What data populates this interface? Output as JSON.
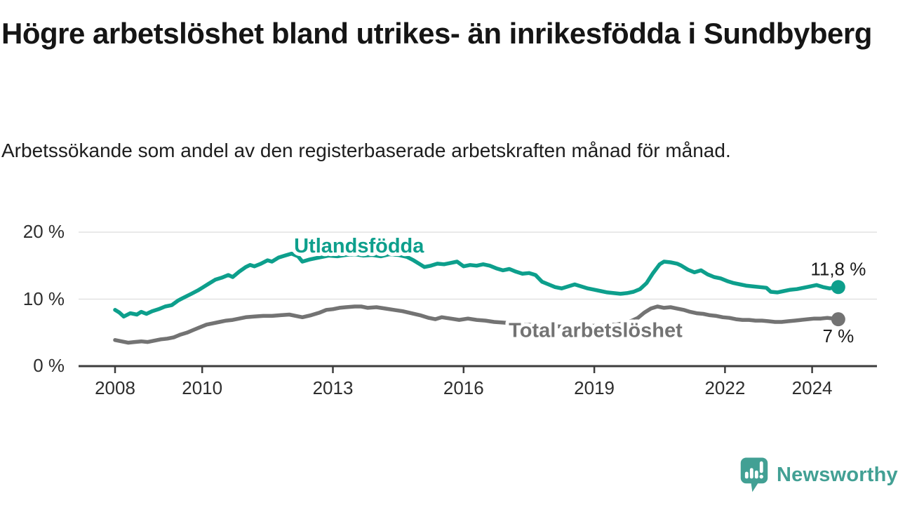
{
  "page": {
    "title": "Högre arbetslöshet bland utrikes- än inrikesfödda i Sundbyberg",
    "subtitle": "Arbetssökande som andel av den registerbaserade arbetskraften månad för månad."
  },
  "branding": {
    "name": "Newsworthy",
    "color": "#42a094",
    "icon": "bar-chart-speech-bubble"
  },
  "chart_data": {
    "type": "line",
    "title": "Högre arbetslöshet bland utrikes- än inrikesfödda i Sundbyberg",
    "subtitle": "Arbetssökande som andel av den registerbaserade arbetskraften månad för månad.",
    "grid": "horizontal-only",
    "legend_position": "inline-labels",
    "xlim": [
      2007.2,
      2025.4
    ],
    "ylim": [
      0,
      21
    ],
    "x_ticks": [
      {
        "year": 2008,
        "label": "2008"
      },
      {
        "year": 2010,
        "label": "2010"
      },
      {
        "year": 2013,
        "label": "2013"
      },
      {
        "year": 2016,
        "label": "2016"
      },
      {
        "year": 2019,
        "label": "2019"
      },
      {
        "year": 2022,
        "label": "2022"
      },
      {
        "year": 2024,
        "label": "2024"
      }
    ],
    "y_ticks": [
      {
        "value": 0,
        "label": "0 %"
      },
      {
        "value": 10,
        "label": "10 %"
      },
      {
        "value": 20,
        "label": "20 %"
      }
    ],
    "series": [
      {
        "name": "Utlandsfödda",
        "color": "#0d9f8c",
        "end_label": "11,8 %",
        "end_label_side": "above",
        "label_anchor": {
          "year": 2013.6,
          "value": 17.9
        },
        "points": [
          [
            2008.0,
            8.4
          ],
          [
            2008.1,
            8.0
          ],
          [
            2008.2,
            7.4
          ],
          [
            2008.35,
            7.9
          ],
          [
            2008.5,
            7.7
          ],
          [
            2008.6,
            8.1
          ],
          [
            2008.72,
            7.8
          ],
          [
            2008.85,
            8.2
          ],
          [
            2009.0,
            8.5
          ],
          [
            2009.15,
            8.9
          ],
          [
            2009.3,
            9.1
          ],
          [
            2009.45,
            9.8
          ],
          [
            2009.6,
            10.3
          ],
          [
            2009.75,
            10.8
          ],
          [
            2009.9,
            11.3
          ],
          [
            2010.0,
            11.7
          ],
          [
            2010.15,
            12.3
          ],
          [
            2010.3,
            12.9
          ],
          [
            2010.45,
            13.2
          ],
          [
            2010.6,
            13.6
          ],
          [
            2010.7,
            13.3
          ],
          [
            2010.85,
            14.1
          ],
          [
            2011.0,
            14.8
          ],
          [
            2011.1,
            15.1
          ],
          [
            2011.2,
            14.9
          ],
          [
            2011.35,
            15.3
          ],
          [
            2011.5,
            15.8
          ],
          [
            2011.6,
            15.6
          ],
          [
            2011.75,
            16.2
          ],
          [
            2011.9,
            16.5
          ],
          [
            2012.05,
            16.8
          ],
          [
            2012.2,
            16.4
          ],
          [
            2012.3,
            15.6
          ],
          [
            2012.45,
            15.9
          ],
          [
            2012.6,
            16.1
          ],
          [
            2012.75,
            16.3
          ],
          [
            2012.9,
            16.5
          ],
          [
            2013.1,
            16.4
          ],
          [
            2013.3,
            16.6
          ],
          [
            2013.5,
            16.7
          ],
          [
            2013.7,
            16.5
          ],
          [
            2013.9,
            16.6
          ],
          [
            2014.1,
            16.4
          ],
          [
            2014.3,
            16.7
          ],
          [
            2014.5,
            16.6
          ],
          [
            2014.7,
            16.3
          ],
          [
            2014.85,
            15.8
          ],
          [
            2015.0,
            15.2
          ],
          [
            2015.1,
            14.8
          ],
          [
            2015.25,
            15.0
          ],
          [
            2015.4,
            15.3
          ],
          [
            2015.55,
            15.2
          ],
          [
            2015.7,
            15.4
          ],
          [
            2015.85,
            15.6
          ],
          [
            2016.0,
            14.9
          ],
          [
            2016.15,
            15.1
          ],
          [
            2016.3,
            15.0
          ],
          [
            2016.45,
            15.2
          ],
          [
            2016.6,
            15.0
          ],
          [
            2016.75,
            14.6
          ],
          [
            2016.9,
            14.3
          ],
          [
            2017.05,
            14.5
          ],
          [
            2017.2,
            14.1
          ],
          [
            2017.35,
            13.8
          ],
          [
            2017.5,
            13.9
          ],
          [
            2017.65,
            13.6
          ],
          [
            2017.8,
            12.6
          ],
          [
            2017.95,
            12.2
          ],
          [
            2018.1,
            11.8
          ],
          [
            2018.25,
            11.6
          ],
          [
            2018.4,
            11.9
          ],
          [
            2018.55,
            12.2
          ],
          [
            2018.7,
            11.9
          ],
          [
            2018.85,
            11.6
          ],
          [
            2019.0,
            11.4
          ],
          [
            2019.15,
            11.2
          ],
          [
            2019.3,
            11.0
          ],
          [
            2019.45,
            10.9
          ],
          [
            2019.6,
            10.8
          ],
          [
            2019.75,
            10.9
          ],
          [
            2019.9,
            11.1
          ],
          [
            2020.05,
            11.5
          ],
          [
            2020.2,
            12.4
          ],
          [
            2020.35,
            13.9
          ],
          [
            2020.5,
            15.2
          ],
          [
            2020.6,
            15.6
          ],
          [
            2020.75,
            15.5
          ],
          [
            2020.9,
            15.3
          ],
          [
            2021.0,
            15.0
          ],
          [
            2021.15,
            14.4
          ],
          [
            2021.3,
            14.0
          ],
          [
            2021.45,
            14.3
          ],
          [
            2021.6,
            13.7
          ],
          [
            2021.75,
            13.3
          ],
          [
            2021.9,
            13.1
          ],
          [
            2022.05,
            12.7
          ],
          [
            2022.2,
            12.4
          ],
          [
            2022.35,
            12.2
          ],
          [
            2022.5,
            12.0
          ],
          [
            2022.65,
            11.9
          ],
          [
            2022.8,
            11.8
          ],
          [
            2022.95,
            11.7
          ],
          [
            2023.05,
            11.1
          ],
          [
            2023.2,
            11.0
          ],
          [
            2023.35,
            11.2
          ],
          [
            2023.5,
            11.4
          ],
          [
            2023.65,
            11.5
          ],
          [
            2023.8,
            11.7
          ],
          [
            2023.95,
            11.9
          ],
          [
            2024.1,
            12.1
          ],
          [
            2024.25,
            11.8
          ],
          [
            2024.4,
            11.6
          ],
          [
            2024.6,
            11.8
          ]
        ]
      },
      {
        "name": "Total arbetslöshet",
        "color": "#737373",
        "end_label": "7 %",
        "end_label_side": "below",
        "label_anchor": {
          "year": 2019.03,
          "value": 5.3
        },
        "points": [
          [
            2008.0,
            3.9
          ],
          [
            2008.15,
            3.7
          ],
          [
            2008.3,
            3.5
          ],
          [
            2008.45,
            3.6
          ],
          [
            2008.6,
            3.7
          ],
          [
            2008.75,
            3.6
          ],
          [
            2008.9,
            3.8
          ],
          [
            2009.05,
            4.0
          ],
          [
            2009.2,
            4.1
          ],
          [
            2009.35,
            4.3
          ],
          [
            2009.5,
            4.7
          ],
          [
            2009.65,
            5.0
          ],
          [
            2009.8,
            5.4
          ],
          [
            2009.95,
            5.8
          ],
          [
            2010.1,
            6.2
          ],
          [
            2010.25,
            6.4
          ],
          [
            2010.4,
            6.6
          ],
          [
            2010.55,
            6.8
          ],
          [
            2010.7,
            6.9
          ],
          [
            2010.85,
            7.1
          ],
          [
            2011.0,
            7.3
          ],
          [
            2011.2,
            7.4
          ],
          [
            2011.4,
            7.5
          ],
          [
            2011.6,
            7.5
          ],
          [
            2011.8,
            7.6
          ],
          [
            2012.0,
            7.7
          ],
          [
            2012.15,
            7.5
          ],
          [
            2012.3,
            7.3
          ],
          [
            2012.5,
            7.6
          ],
          [
            2012.7,
            8.0
          ],
          [
            2012.85,
            8.4
          ],
          [
            2013.0,
            8.5
          ],
          [
            2013.15,
            8.7
          ],
          [
            2013.3,
            8.8
          ],
          [
            2013.5,
            8.9
          ],
          [
            2013.65,
            8.9
          ],
          [
            2013.8,
            8.7
          ],
          [
            2014.0,
            8.8
          ],
          [
            2014.2,
            8.6
          ],
          [
            2014.4,
            8.4
          ],
          [
            2014.6,
            8.2
          ],
          [
            2014.8,
            7.9
          ],
          [
            2015.0,
            7.6
          ],
          [
            2015.2,
            7.2
          ],
          [
            2015.35,
            7.0
          ],
          [
            2015.5,
            7.3
          ],
          [
            2015.7,
            7.1
          ],
          [
            2015.9,
            6.9
          ],
          [
            2016.1,
            7.1
          ],
          [
            2016.3,
            6.9
          ],
          [
            2016.5,
            6.8
          ],
          [
            2016.7,
            6.6
          ],
          [
            2016.9,
            6.5
          ],
          [
            2017.1,
            6.4
          ],
          [
            2017.4,
            6.2
          ],
          [
            2017.7,
            6.1
          ],
          [
            2018.0,
            6.0
          ],
          [
            2018.3,
            5.9
          ],
          [
            2018.6,
            6.0
          ],
          [
            2018.9,
            6.0
          ],
          [
            2019.2,
            6.1
          ],
          [
            2019.5,
            6.2
          ],
          [
            2019.8,
            6.6
          ],
          [
            2020.0,
            7.2
          ],
          [
            2020.15,
            8.0
          ],
          [
            2020.3,
            8.6
          ],
          [
            2020.45,
            8.9
          ],
          [
            2020.6,
            8.7
          ],
          [
            2020.75,
            8.8
          ],
          [
            2020.9,
            8.6
          ],
          [
            2021.05,
            8.4
          ],
          [
            2021.2,
            8.1
          ],
          [
            2021.35,
            7.9
          ],
          [
            2021.5,
            7.8
          ],
          [
            2021.65,
            7.6
          ],
          [
            2021.8,
            7.5
          ],
          [
            2021.95,
            7.3
          ],
          [
            2022.1,
            7.2
          ],
          [
            2022.25,
            7.0
          ],
          [
            2022.4,
            6.9
          ],
          [
            2022.55,
            6.9
          ],
          [
            2022.7,
            6.8
          ],
          [
            2022.85,
            6.8
          ],
          [
            2023.0,
            6.7
          ],
          [
            2023.15,
            6.6
          ],
          [
            2023.3,
            6.6
          ],
          [
            2023.45,
            6.7
          ],
          [
            2023.6,
            6.8
          ],
          [
            2023.75,
            6.9
          ],
          [
            2023.9,
            7.0
          ],
          [
            2024.05,
            7.1
          ],
          [
            2024.2,
            7.1
          ],
          [
            2024.35,
            7.2
          ],
          [
            2024.6,
            7.0
          ]
        ]
      }
    ],
    "colors": {
      "gridline": "#e2e2e2",
      "axis": "#3d3d3d",
      "tick_text": "#2e2e2e",
      "value_text": "#1a1a1a"
    }
  }
}
